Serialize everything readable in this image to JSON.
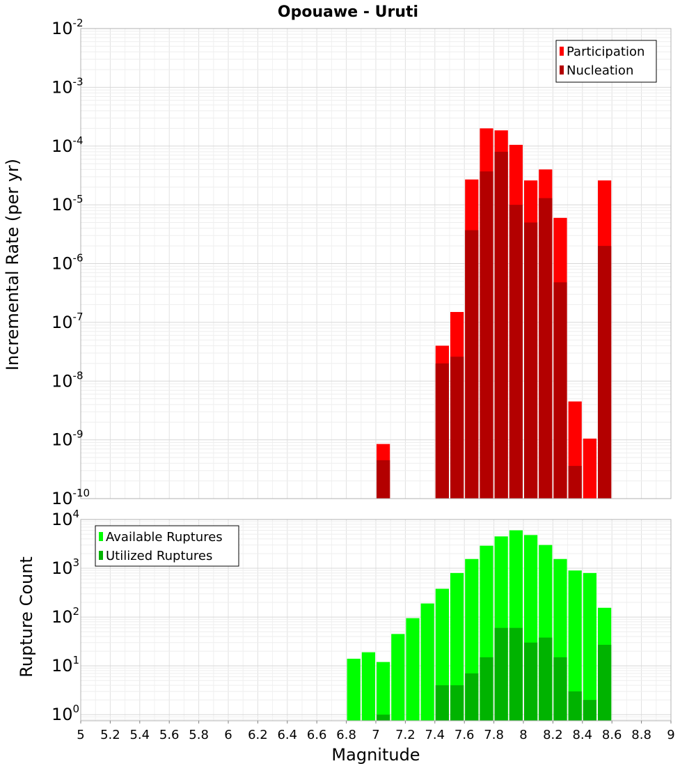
{
  "chart_data": [
    {
      "type": "bar",
      "title": "Opouawe - Uruti",
      "xlabel": "",
      "ylabel": "Incremental Rate (per yr)",
      "yscale": "log",
      "xlim": [
        5,
        9
      ],
      "ylim": [
        1e-10,
        0.01
      ],
      "ytick_exponents": [
        -10,
        -9,
        -8,
        -7,
        -6,
        -5,
        -4,
        -3,
        -2
      ],
      "bar_width": 0.1,
      "grid": true,
      "legend_position": "top-right",
      "x": [
        7.05,
        7.45,
        7.55,
        7.65,
        7.75,
        7.85,
        7.95,
        8.05,
        8.15,
        8.25,
        8.35,
        8.45,
        8.55
      ],
      "series": [
        {
          "name": "Participation",
          "color": "#ff0000",
          "values": [
            8.5e-10,
            4e-08,
            1.5e-07,
            2.7e-05,
            0.0002,
            0.000185,
            0.000105,
            2.6e-05,
            4e-05,
            6e-06,
            4.5e-09,
            1.05e-09,
            2.6e-05
          ]
        },
        {
          "name": "Nucleation",
          "color": "#b30000",
          "values": [
            4.5e-10,
            2e-08,
            2.6e-08,
            3.7e-06,
            3.7e-05,
            8e-05,
            1e-05,
            5e-06,
            1.3e-05,
            4.8e-07,
            3.6e-10,
            null,
            2e-06
          ]
        }
      ]
    },
    {
      "type": "bar",
      "title": "",
      "xlabel": "Magnitude",
      "ylabel": "Rupture Count",
      "yscale": "log",
      "xlim": [
        5,
        9
      ],
      "ylim": [
        0.75,
        10000
      ],
      "ytick_exponents": [
        0,
        1,
        2,
        3,
        4
      ],
      "xticks": [
        "5",
        "5.2",
        "5.4",
        "5.6",
        "5.8",
        "6",
        "6.2",
        "6.4",
        "6.6",
        "6.8",
        "7",
        "7.2",
        "7.4",
        "7.6",
        "7.8",
        "8",
        "8.2",
        "8.4",
        "8.6",
        "8.8",
        "9"
      ],
      "bar_width": 0.1,
      "grid": true,
      "legend_position": "top-left",
      "x": [
        6.85,
        6.95,
        7.05,
        7.15,
        7.25,
        7.35,
        7.45,
        7.55,
        7.65,
        7.75,
        7.85,
        7.95,
        8.05,
        8.15,
        8.25,
        8.35,
        8.45,
        8.55
      ],
      "series": [
        {
          "name": "Available Ruptures",
          "color": "#00ff00",
          "values": [
            14,
            19,
            12,
            45,
            95,
            190,
            380,
            800,
            1550,
            2900,
            4500,
            6000,
            4800,
            3000,
            1550,
            900,
            800,
            155
          ]
        },
        {
          "name": "Utilized Ruptures",
          "color": "#00b300",
          "values": [
            null,
            null,
            1,
            null,
            null,
            null,
            4,
            4,
            7,
            15,
            60,
            60,
            30,
            38,
            15,
            3,
            2,
            27
          ]
        }
      ]
    }
  ]
}
